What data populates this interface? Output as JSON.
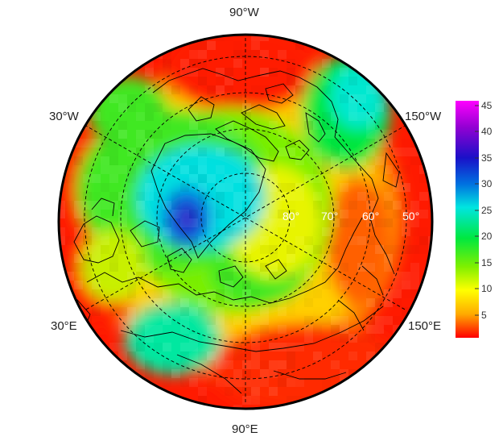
{
  "map": {
    "projection": "north polar stereographic",
    "outer_labels": {
      "top": "90°W",
      "bottom": "90°E",
      "upper_left": "30°W",
      "upper_right": "150°W",
      "lower_left": "30°E",
      "lower_right": "150°E"
    },
    "latitude_labels": [
      "80°",
      "70°",
      "60°",
      "50°"
    ],
    "field": {
      "description_levels": "filled field, red low, magenta high",
      "regions": [
        {
          "name": "arctic-blue-min",
          "value": 36
        },
        {
          "name": "arctic-cyan-core",
          "value": 28
        },
        {
          "name": "polar-green",
          "value": 20
        },
        {
          "name": "mid-yellow-ring",
          "value": 11
        },
        {
          "name": "outer-red",
          "value": 3
        }
      ]
    }
  },
  "colorbar": {
    "ticks": [
      "45",
      "40",
      "35",
      "30",
      "25",
      "20",
      "15",
      "10",
      "5"
    ],
    "min": 1,
    "max": 47,
    "colors": [
      "#ff00ff",
      "#9400d3",
      "#1a10c8",
      "#0070e0",
      "#00e5e0",
      "#00e840",
      "#7ff000",
      "#ffff00",
      "#ffaa00",
      "#ff0000"
    ]
  }
}
